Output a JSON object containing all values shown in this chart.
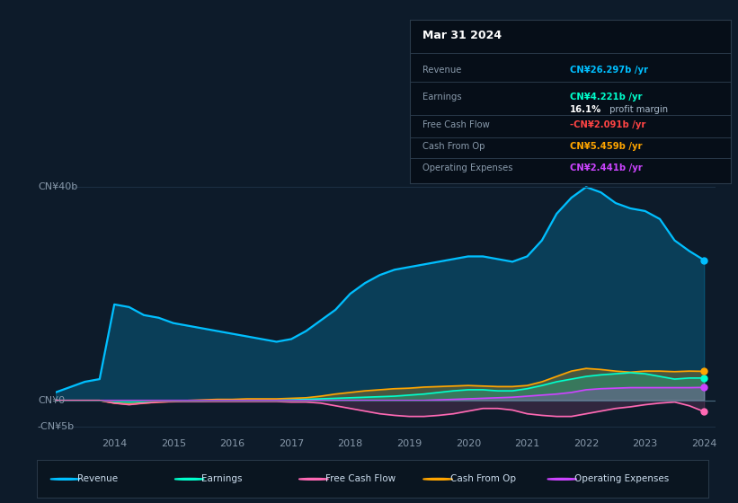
{
  "bg_color": "#0d1b2a",
  "plot_bg_color": "#0d1b2a",
  "title": "Mar 31 2024",
  "ylabel_top": "CN¥40b",
  "ylabel_zero": "CN¥0",
  "ylabel_neg": "-CN¥5b",
  "ylim": [
    -6.5,
    43
  ],
  "years": [
    2013.0,
    2013.25,
    2013.5,
    2013.75,
    2014.0,
    2014.25,
    2014.5,
    2014.75,
    2015.0,
    2015.25,
    2015.5,
    2015.75,
    2016.0,
    2016.25,
    2016.5,
    2016.75,
    2017.0,
    2017.25,
    2017.5,
    2017.75,
    2018.0,
    2018.25,
    2018.5,
    2018.75,
    2019.0,
    2019.25,
    2019.5,
    2019.75,
    2020.0,
    2020.25,
    2020.5,
    2020.75,
    2021.0,
    2021.25,
    2021.5,
    2021.75,
    2022.0,
    2022.25,
    2022.5,
    2022.75,
    2023.0,
    2023.25,
    2023.5,
    2023.75,
    2024.0
  ],
  "revenue": [
    1.5,
    2.5,
    3.5,
    4.0,
    18.0,
    17.5,
    16.0,
    15.5,
    14.5,
    14.0,
    13.5,
    13.0,
    12.5,
    12.0,
    11.5,
    11.0,
    11.5,
    13.0,
    15.0,
    17.0,
    20.0,
    22.0,
    23.5,
    24.5,
    25.0,
    25.5,
    26.0,
    26.5,
    27.0,
    27.0,
    26.5,
    26.0,
    27.0,
    30.0,
    35.0,
    38.0,
    40.0,
    39.0,
    37.0,
    36.0,
    35.5,
    34.0,
    30.0,
    28.0,
    26.3
  ],
  "earnings": [
    0.0,
    0.0,
    0.0,
    0.0,
    -0.2,
    -0.3,
    -0.2,
    -0.1,
    -0.1,
    -0.1,
    -0.1,
    0.0,
    0.0,
    0.0,
    0.0,
    0.0,
    0.1,
    0.2,
    0.3,
    0.4,
    0.5,
    0.6,
    0.7,
    0.8,
    1.0,
    1.2,
    1.5,
    1.8,
    2.0,
    2.0,
    1.8,
    1.8,
    2.2,
    2.8,
    3.5,
    4.0,
    4.5,
    4.8,
    5.0,
    5.2,
    5.0,
    4.5,
    4.0,
    4.2,
    4.2
  ],
  "free_cash_flow": [
    0.0,
    0.0,
    0.0,
    0.0,
    -0.5,
    -0.8,
    -0.5,
    -0.3,
    -0.2,
    -0.2,
    -0.2,
    -0.2,
    -0.2,
    -0.2,
    -0.2,
    -0.2,
    -0.3,
    -0.3,
    -0.5,
    -1.0,
    -1.5,
    -2.0,
    -2.5,
    -2.8,
    -3.0,
    -3.0,
    -2.8,
    -2.5,
    -2.0,
    -1.5,
    -1.5,
    -1.8,
    -2.5,
    -2.8,
    -3.0,
    -3.0,
    -2.5,
    -2.0,
    -1.5,
    -1.2,
    -0.8,
    -0.5,
    -0.3,
    -1.0,
    -2.1
  ],
  "cash_from_op": [
    0.0,
    0.0,
    0.0,
    0.0,
    -0.5,
    -0.7,
    -0.5,
    -0.3,
    -0.2,
    0.0,
    0.1,
    0.2,
    0.2,
    0.3,
    0.3,
    0.3,
    0.4,
    0.5,
    0.8,
    1.2,
    1.5,
    1.8,
    2.0,
    2.2,
    2.3,
    2.5,
    2.6,
    2.7,
    2.8,
    2.7,
    2.6,
    2.6,
    2.8,
    3.5,
    4.5,
    5.5,
    6.0,
    5.8,
    5.5,
    5.3,
    5.5,
    5.5,
    5.4,
    5.5,
    5.459
  ],
  "operating_expenses": [
    0.0,
    0.0,
    0.0,
    0.0,
    0.0,
    0.0,
    0.0,
    0.0,
    0.0,
    0.0,
    0.0,
    0.0,
    0.0,
    0.0,
    0.0,
    0.0,
    0.0,
    0.0,
    0.0,
    0.0,
    0.0,
    0.0,
    0.0,
    0.0,
    0.0,
    0.0,
    0.1,
    0.2,
    0.3,
    0.4,
    0.5,
    0.6,
    0.8,
    1.0,
    1.2,
    1.5,
    2.0,
    2.2,
    2.3,
    2.4,
    2.4,
    2.4,
    2.4,
    2.4,
    2.441
  ],
  "revenue_color": "#00bfff",
  "earnings_color": "#00ffcc",
  "fcf_color": "#ff69b4",
  "cash_op_color": "#ffa500",
  "opex_color": "#cc44ff",
  "grid_color": "#1e3348",
  "axis_label_color": "#8899aa",
  "xticks": [
    2013,
    2014,
    2015,
    2016,
    2017,
    2018,
    2019,
    2020,
    2021,
    2022,
    2023,
    2024
  ],
  "xtick_labels": [
    "",
    "2014",
    "2015",
    "2016",
    "2017",
    "2018",
    "2019",
    "2020",
    "2021",
    "2022",
    "2023",
    "2024"
  ],
  "info_rows": [
    {
      "label": "Revenue",
      "value": "CN¥26.297b /yr",
      "color": "#00bfff"
    },
    {
      "label": "Earnings",
      "value": "CN¥4.221b /yr",
      "color": "#00ffcc"
    },
    {
      "label": "",
      "value": "16.1% profit margin",
      "color": "mixed"
    },
    {
      "label": "Free Cash Flow",
      "value": "-CN¥2.091b /yr",
      "color": "#ff4444"
    },
    {
      "label": "Cash From Op",
      "value": "CN¥5.459b /yr",
      "color": "#ffa500"
    },
    {
      "label": "Operating Expenses",
      "value": "CN¥2.441b /yr",
      "color": "#cc44ff"
    }
  ],
  "legend_items": [
    {
      "name": "Revenue",
      "color": "#00bfff"
    },
    {
      "name": "Earnings",
      "color": "#00ffcc"
    },
    {
      "name": "Free Cash Flow",
      "color": "#ff69b4"
    },
    {
      "name": "Cash From Op",
      "color": "#ffa500"
    },
    {
      "name": "Operating Expenses",
      "color": "#cc44ff"
    }
  ]
}
